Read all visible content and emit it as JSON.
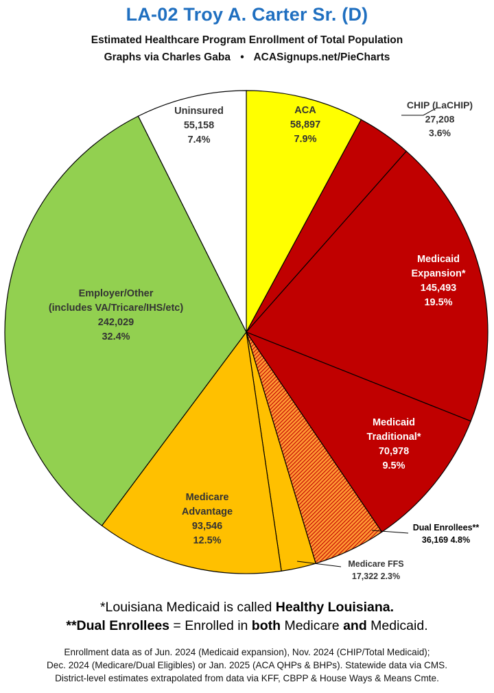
{
  "header": {
    "title": "LA-02 Troy A. Carter Sr. (D)",
    "subtitle": "Estimated Healthcare Program Enrollment of Total Population",
    "credit_left": "Graphs via Charles Gaba",
    "credit_sep": "•",
    "credit_right": "ACASignups.net/PieCharts"
  },
  "chart_data": {
    "type": "pie",
    "title": "Estimated Healthcare Program Enrollment of Total Population",
    "slices": [
      {
        "name": "ACA",
        "value": 58897,
        "pct": "7.9%",
        "value_label": "58,897",
        "color": "#ffff00",
        "pattern": "solid",
        "label_color": "#333333"
      },
      {
        "name": "CHIP (LaCHIP)",
        "value": 27208,
        "pct": "3.6%",
        "value_label": "27,208",
        "color": "#c00000",
        "pattern": "solid",
        "label_color": "#333333"
      },
      {
        "name": "Medicaid Expansion*",
        "value": 145493,
        "pct": "19.5%",
        "value_label": "145,493",
        "color": "#c00000",
        "pattern": "solid",
        "label_color": "#ffffff"
      },
      {
        "name": "Medicaid Traditional*",
        "value": 70978,
        "pct": "9.5%",
        "value_label": "70,978",
        "color": "#c00000",
        "pattern": "solid",
        "label_color": "#ffffff"
      },
      {
        "name": "Dual Enrollees**",
        "value": 36169,
        "pct": "4.8%",
        "value_label": "36,169",
        "color": "#c00000",
        "pattern": "hatched",
        "label_color": "#000000"
      },
      {
        "name": "Medicare FFS",
        "value": 17322,
        "pct": "2.3%",
        "value_label": "17,322",
        "color": "#ffc000",
        "pattern": "solid",
        "label_color": "#333333"
      },
      {
        "name": "Medicare Advantage",
        "value": 93546,
        "pct": "12.5%",
        "value_label": "93,546",
        "color": "#ffc000",
        "pattern": "solid",
        "label_color": "#333333"
      },
      {
        "name": "Employer/Other (includes VA/Tricare/IHS/etc)",
        "value": 242029,
        "pct": "32.4%",
        "value_label": "242,029",
        "color": "#92d050",
        "pattern": "solid",
        "label_color": "#333333"
      },
      {
        "name": "Uninsured",
        "value": 55158,
        "pct": "7.4%",
        "value_label": "55,158",
        "color": "#ffffff",
        "pattern": "solid",
        "label_color": "#333333"
      }
    ]
  },
  "notes": {
    "note1_pre": "*Louisiana Medicaid is called ",
    "note1_bold": "Healthy Louisiana.",
    "note2_b1": "**Dual Enrollees",
    "note2_t1": " = Enrolled in ",
    "note2_b2": "both",
    "note2_t2": " Medicare ",
    "note2_b3": "and",
    "note2_t3": " Medicaid."
  },
  "footer": {
    "line1": "Enrollment data as of Jun. 2024 (Medicaid expansion), Nov. 2024 (CHIP/Total Medicaid);",
    "line2": "Dec. 2024 (Medicare/Dual Eligibles) or Jan. 2025 (ACA QHPs & BHPs). Statewide data via CMS.",
    "line3": "District-level estimates extrapolated from data via KFF, CBPP & House Ways & Means Cmte."
  }
}
